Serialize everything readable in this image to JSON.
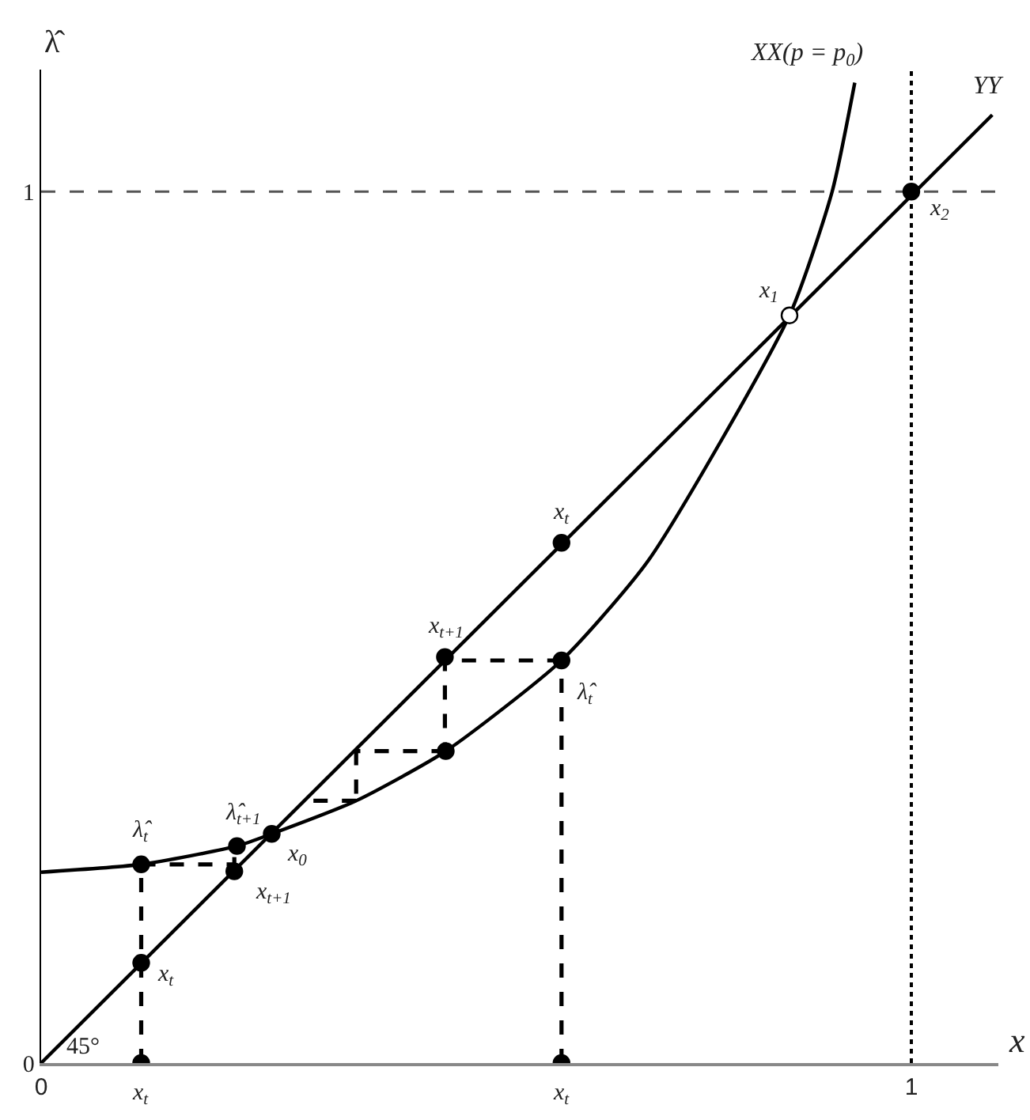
{
  "chart_data": {
    "type": "line",
    "xlabel": "x",
    "ylabel": "λ̂",
    "xlim": [
      0,
      1.1
    ],
    "ylim": [
      0,
      1.14
    ],
    "xticks": [
      0,
      1
    ],
    "yticks": [
      0,
      1
    ],
    "marker": "none",
    "line_style": "solid",
    "series": [
      {
        "color": "#000000",
        "x": [
          0,
          1.093
        ],
        "values": [
          0,
          1.088
        ]
      },
      {
        "color": "#000000",
        "x": [
          0,
          0.115,
          0.225,
          0.265,
          0.362,
          0.465,
          0.598,
          0.698,
          0.86,
          0.909,
          0.935
        ],
        "values": [
          0.219,
          0.228,
          0.249,
          0.263,
          0.301,
          0.358,
          0.462,
          0.577,
          0.858,
          1.0,
          1.125
        ]
      },
      {
        "color": "#000000",
        "line_style": "dashed",
        "x": [
          0.115,
          0.115,
          null,
          0.115,
          0.222,
          null,
          0.222,
          0.222,
          null,
          0.598,
          0.598,
          null,
          0.598,
          0.464,
          null,
          0.464,
          0.464,
          null,
          0.465,
          0.362,
          null,
          0.362,
          0.362,
          null,
          0.362,
          0.305
        ],
        "values": [
          0,
          0.228,
          null,
          0.228,
          0.228,
          null,
          0.22,
          0.249,
          null,
          0,
          0.462,
          null,
          0.462,
          0.462,
          null,
          0.466,
          0.358,
          null,
          0.358,
          0.358,
          null,
          0.358,
          0.301,
          null,
          0.301,
          0.301
        ]
      },
      {
        "type": "scatter",
        "marker": "circle",
        "color": "#000000",
        "x": [
          0.115,
          0.115,
          0.115,
          0.222,
          0.225,
          0.265,
          0.464,
          0.465,
          0.598,
          0.598,
          0.598,
          0.86,
          1.0
        ],
        "values": [
          0,
          0.115,
          0.228,
          0.22,
          0.249,
          0.263,
          0.466,
          0.358,
          0,
          0.462,
          0.597,
          0.858,
          1.0
        ],
        "colors": [
          "#000000",
          "#000000",
          "#000000",
          "#000000",
          "#000000",
          "#000000",
          "#000000",
          "#000000",
          "#000000",
          "#000000",
          "#000000",
          "#ffffff",
          "#000000"
        ]
      }
    ],
    "ref_lines": [
      {
        "axis": "y",
        "value": 1,
        "color": "#555555",
        "line_style": "dashed"
      },
      {
        "axis": "x",
        "value": 1,
        "color": "#000000",
        "line_style": "dotted"
      }
    ],
    "annotations": [
      {
        "text": "x$_{t}$",
        "x": 0.115,
        "y": 0
      },
      {
        "text": "x$_{t}$",
        "x": 0.115,
        "y": 0.115
      },
      {
        "text": "λ̂$_{t}$",
        "x": 0.115,
        "y": 0.228
      },
      {
        "text": "x$_{t+1}$",
        "x": 0.222,
        "y": 0.22
      },
      {
        "text": "λ̂$_{t+1}$",
        "x": 0.225,
        "y": 0.249
      },
      {
        "text": "x$_{0}$",
        "x": 0.265,
        "y": 0.263
      },
      {
        "text": "x$_{t+1}$",
        "x": 0.464,
        "y": 0.466
      },
      {
        "text": "λ̂$_{t}$",
        "x": 0.598,
        "y": 0.462
      },
      {
        "text": "x$_{t}$",
        "x": 0.598,
        "y": 0.597
      },
      {
        "text": "x$_{t}$",
        "x": 0.598,
        "y": 0
      },
      {
        "text": "x$_{1}$",
        "x": 0.86,
        "y": 0.858
      },
      {
        "text": "x$_{2}$",
        "x": 1.0,
        "y": 1.0
      },
      {
        "text": "45°",
        "x": 0,
        "y": 0
      },
      {
        "text": "XX(p = p$_{0}$)",
        "x": 0.935,
        "y": 1.125
      },
      {
        "text": "YY",
        "x": 1.093,
        "y": 1.088
      }
    ]
  }
}
